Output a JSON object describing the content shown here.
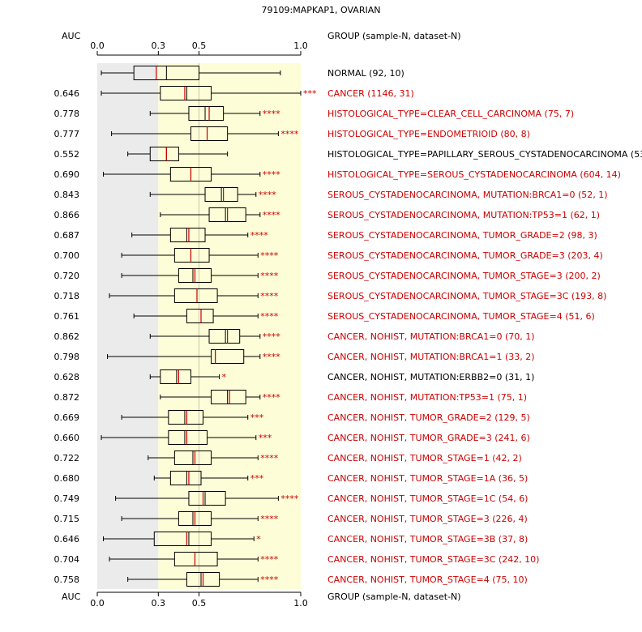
{
  "chart_data": {
    "type": "boxplot",
    "title": "79109:MAPKAP1, OVARIAN",
    "x_axis": {
      "range": [
        0.0,
        1.0
      ],
      "ticks": [
        0.0,
        0.3,
        0.5,
        1.0
      ],
      "tick_labels": [
        "0.0",
        "0.3",
        "0.5",
        "1.0"
      ]
    },
    "auc_header": "AUC",
    "group_header": "GROUP (sample-N, dataset-N)",
    "colors": {
      "significant": "#cc0000",
      "normal": "#000000",
      "median": "#cc0000",
      "shade_left": "#ebebeb",
      "shade_right": "#fdfdd7"
    },
    "rows": [
      {
        "auc": "",
        "label": "NORMAL (92, 10)",
        "significant": false,
        "stars": "",
        "whisker_low": 0.02,
        "q1": 0.18,
        "median": 0.34,
        "q3": 0.5,
        "whisker_high": 0.9,
        "mean": 0.29
      },
      {
        "auc": "0.646",
        "label": "CANCER (1146, 31)",
        "significant": true,
        "stars": "***",
        "whisker_low": 0.02,
        "q1": 0.31,
        "median": 0.44,
        "q3": 0.56,
        "whisker_high": 1.0,
        "mean": 0.43
      },
      {
        "auc": "0.778",
        "label": "HISTOLOGICAL_TYPE=CLEAR_CELL_CARCINOMA (75, 7)",
        "significant": true,
        "stars": "****",
        "whisker_low": 0.26,
        "q1": 0.45,
        "median": 0.53,
        "q3": 0.62,
        "whisker_high": 0.8,
        "mean": 0.55
      },
      {
        "auc": "0.777",
        "label": "HISTOLOGICAL_TYPE=ENDOMETRIOID (80, 8)",
        "significant": true,
        "stars": "****",
        "whisker_low": 0.07,
        "q1": 0.46,
        "median": 0.54,
        "q3": 0.64,
        "whisker_high": 0.89,
        "mean": 0.54
      },
      {
        "auc": "0.552",
        "label": "HISTOLOGICAL_TYPE=PAPILLARY_SEROUS_CYSTADENOCARCINOMA (53, 1)",
        "significant": false,
        "stars": "",
        "whisker_low": 0.15,
        "q1": 0.26,
        "median": 0.34,
        "q3": 0.4,
        "whisker_high": 0.64,
        "mean": 0.34
      },
      {
        "auc": "0.690",
        "label": "HISTOLOGICAL_TYPE=SEROUS_CYSTADENOCARCINOMA (604, 14)",
        "significant": true,
        "stars": "****",
        "whisker_low": 0.03,
        "q1": 0.36,
        "median": 0.46,
        "q3": 0.56,
        "whisker_high": 0.8,
        "mean": 0.46
      },
      {
        "auc": "0.843",
        "label": "SEROUS_CYSTADENOCARCINOMA, MUTATION:BRCA1=0 (52, 1)",
        "significant": true,
        "stars": "****",
        "whisker_low": 0.26,
        "q1": 0.53,
        "median": 0.61,
        "q3": 0.69,
        "whisker_high": 0.78,
        "mean": 0.62
      },
      {
        "auc": "0.866",
        "label": "SEROUS_CYSTADENOCARCINOMA, MUTATION:TP53=1 (62, 1)",
        "significant": true,
        "stars": "****",
        "whisker_low": 0.31,
        "q1": 0.55,
        "median": 0.63,
        "q3": 0.73,
        "whisker_high": 0.8,
        "mean": 0.64
      },
      {
        "auc": "0.687",
        "label": "SEROUS_CYSTADENOCARCINOMA, TUMOR_GRADE=2 (98, 3)",
        "significant": true,
        "stars": "****",
        "whisker_low": 0.17,
        "q1": 0.36,
        "median": 0.44,
        "q3": 0.53,
        "whisker_high": 0.74,
        "mean": 0.45
      },
      {
        "auc": "0.700",
        "label": "SEROUS_CYSTADENOCARCINOMA, TUMOR_GRADE=3 (203, 4)",
        "significant": true,
        "stars": "****",
        "whisker_low": 0.12,
        "q1": 0.38,
        "median": 0.46,
        "q3": 0.55,
        "whisker_high": 0.79,
        "mean": 0.46
      },
      {
        "auc": "0.720",
        "label": "SEROUS_CYSTADENOCARCINOMA, TUMOR_STAGE=3 (200, 2)",
        "significant": true,
        "stars": "****",
        "whisker_low": 0.12,
        "q1": 0.4,
        "median": 0.47,
        "q3": 0.56,
        "whisker_high": 0.79,
        "mean": 0.48
      },
      {
        "auc": "0.718",
        "label": "SEROUS_CYSTADENOCARCINOMA, TUMOR_STAGE=3C (193, 8)",
        "significant": true,
        "stars": "****",
        "whisker_low": 0.06,
        "q1": 0.38,
        "median": 0.49,
        "q3": 0.59,
        "whisker_high": 0.79,
        "mean": 0.49
      },
      {
        "auc": "0.761",
        "label": "SEROUS_CYSTADENOCARCINOMA, TUMOR_STAGE=4 (51, 6)",
        "significant": true,
        "stars": "****",
        "whisker_low": 0.18,
        "q1": 0.44,
        "median": 0.51,
        "q3": 0.57,
        "whisker_high": 0.79,
        "mean": 0.51
      },
      {
        "auc": "0.862",
        "label": "CANCER, NOHIST, MUTATION:BRCA1=0 (70, 1)",
        "significant": true,
        "stars": "****",
        "whisker_low": 0.26,
        "q1": 0.55,
        "median": 0.63,
        "q3": 0.7,
        "whisker_high": 0.8,
        "mean": 0.64
      },
      {
        "auc": "0.798",
        "label": "CANCER, NOHIST, MUTATION:BRCA1=1 (33, 2)",
        "significant": true,
        "stars": "****",
        "whisker_low": 0.05,
        "q1": 0.56,
        "median": 0.58,
        "q3": 0.72,
        "whisker_high": 0.8,
        "mean": 0.58
      },
      {
        "auc": "0.628",
        "label": "CANCER, NOHIST, MUTATION:ERBB2=0 (31, 1)",
        "significant": false,
        "stars": "*",
        "whisker_low": 0.26,
        "q1": 0.31,
        "median": 0.39,
        "q3": 0.46,
        "whisker_high": 0.6,
        "mean": 0.4
      },
      {
        "auc": "0.872",
        "label": "CANCER, NOHIST, MUTATION:TP53=1 (75, 1)",
        "significant": true,
        "stars": "****",
        "whisker_low": 0.31,
        "q1": 0.56,
        "median": 0.64,
        "q3": 0.73,
        "whisker_high": 0.8,
        "mean": 0.65
      },
      {
        "auc": "0.669",
        "label": "CANCER, NOHIST, TUMOR_GRADE=2 (129, 5)",
        "significant": true,
        "stars": "***",
        "whisker_low": 0.12,
        "q1": 0.35,
        "median": 0.43,
        "q3": 0.52,
        "whisker_high": 0.74,
        "mean": 0.44
      },
      {
        "auc": "0.660",
        "label": "CANCER, NOHIST, TUMOR_GRADE=3 (241, 6)",
        "significant": true,
        "stars": "***",
        "whisker_low": 0.02,
        "q1": 0.35,
        "median": 0.43,
        "q3": 0.54,
        "whisker_high": 0.78,
        "mean": 0.44
      },
      {
        "auc": "0.722",
        "label": "CANCER, NOHIST, TUMOR_STAGE=1 (42, 2)",
        "significant": true,
        "stars": "****",
        "whisker_low": 0.25,
        "q1": 0.38,
        "median": 0.47,
        "q3": 0.56,
        "whisker_high": 0.79,
        "mean": 0.48
      },
      {
        "auc": "0.680",
        "label": "CANCER, NOHIST, TUMOR_STAGE=1A (36, 5)",
        "significant": true,
        "stars": "***",
        "whisker_low": 0.28,
        "q1": 0.36,
        "median": 0.44,
        "q3": 0.51,
        "whisker_high": 0.74,
        "mean": 0.45
      },
      {
        "auc": "0.749",
        "label": "CANCER, NOHIST, TUMOR_STAGE=1C (54, 6)",
        "significant": true,
        "stars": "****",
        "whisker_low": 0.09,
        "q1": 0.45,
        "median": 0.53,
        "q3": 0.63,
        "whisker_high": 0.89,
        "mean": 0.52
      },
      {
        "auc": "0.715",
        "label": "CANCER, NOHIST, TUMOR_STAGE=3 (226, 4)",
        "significant": true,
        "stars": "****",
        "whisker_low": 0.12,
        "q1": 0.4,
        "median": 0.47,
        "q3": 0.56,
        "whisker_high": 0.79,
        "mean": 0.48
      },
      {
        "auc": "0.646",
        "label": "CANCER, NOHIST, TUMOR_STAGE=3B (37, 8)",
        "significant": true,
        "stars": "*",
        "whisker_low": 0.03,
        "q1": 0.28,
        "median": 0.45,
        "q3": 0.56,
        "whisker_high": 0.77,
        "mean": 0.44
      },
      {
        "auc": "0.704",
        "label": "CANCER, NOHIST, TUMOR_STAGE=3C (242, 10)",
        "significant": true,
        "stars": "****",
        "whisker_low": 0.06,
        "q1": 0.38,
        "median": 0.48,
        "q3": 0.59,
        "whisker_high": 0.79,
        "mean": 0.48
      },
      {
        "auc": "0.758",
        "label": "CANCER, NOHIST, TUMOR_STAGE=4 (75, 10)",
        "significant": true,
        "stars": "****",
        "whisker_low": 0.15,
        "q1": 0.44,
        "median": 0.51,
        "q3": 0.6,
        "whisker_high": 0.79,
        "mean": 0.52
      }
    ]
  }
}
